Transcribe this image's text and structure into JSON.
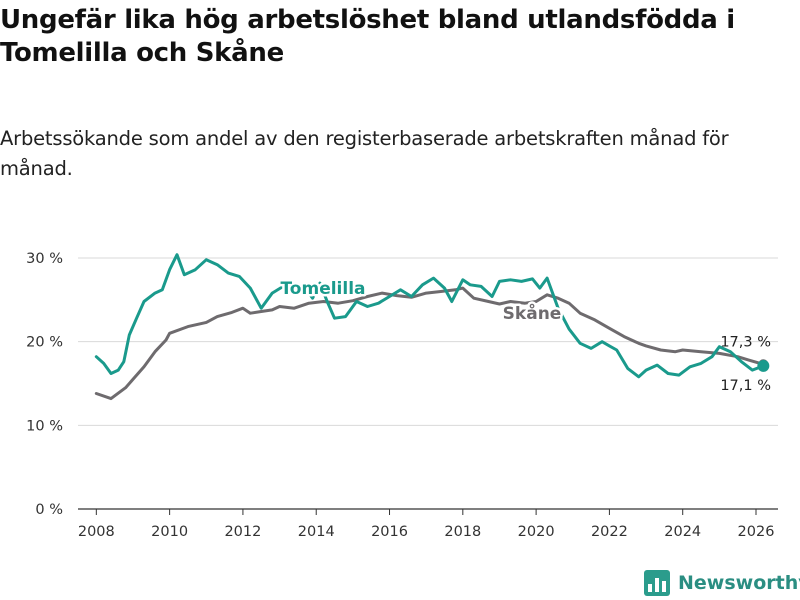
{
  "title": "Ungefär lika hög arbetslöshet bland utlandsfödda i Tomelilla och Skåne",
  "subtitle": "Arbetssökande som andel av den registerbaserade arbetskraften månad för månad.",
  "brand": {
    "name": "Newsworthy",
    "icon": "bar-chart-logo-icon",
    "color": "#2b9c8c"
  },
  "chart_data": {
    "type": "line",
    "x_unit": "year",
    "xlim": [
      2007.5,
      2026.6
    ],
    "ylim": [
      0,
      31
    ],
    "y_ticks": [
      0,
      10,
      20,
      30
    ],
    "y_tick_labels": [
      "0 %",
      "10 %",
      "20 %",
      "30 %"
    ],
    "x_ticks": [
      2008,
      2010,
      2012,
      2014,
      2016,
      2018,
      2020,
      2022,
      2024,
      2026
    ],
    "x_tick_labels": [
      "2008",
      "2010",
      "2012",
      "2014",
      "2016",
      "2018",
      "2020",
      "2022",
      "2024",
      "2026"
    ],
    "grid": "horizontal",
    "series": [
      {
        "name": "Skåne",
        "color": "#6e6b6e",
        "label_position": "mid-line",
        "end_label": "17,3 %",
        "points": [
          [
            2008.0,
            13.8
          ],
          [
            2008.4,
            13.2
          ],
          [
            2008.8,
            14.5
          ],
          [
            2009.0,
            15.5
          ],
          [
            2009.3,
            17.0
          ],
          [
            2009.6,
            18.8
          ],
          [
            2009.9,
            20.2
          ],
          [
            2010.0,
            21.0
          ],
          [
            2010.5,
            21.8
          ],
          [
            2011.0,
            22.3
          ],
          [
            2011.3,
            23.0
          ],
          [
            2011.7,
            23.5
          ],
          [
            2012.0,
            24.0
          ],
          [
            2012.2,
            23.4
          ],
          [
            2012.5,
            23.6
          ],
          [
            2012.8,
            23.8
          ],
          [
            2013.0,
            24.2
          ],
          [
            2013.4,
            24.0
          ],
          [
            2013.8,
            24.6
          ],
          [
            2014.2,
            24.8
          ],
          [
            2014.6,
            24.6
          ],
          [
            2015.0,
            24.9
          ],
          [
            2015.4,
            25.4
          ],
          [
            2015.8,
            25.8
          ],
          [
            2016.2,
            25.5
          ],
          [
            2016.6,
            25.3
          ],
          [
            2017.0,
            25.8
          ],
          [
            2017.4,
            26.0
          ],
          [
            2017.8,
            26.2
          ],
          [
            2018.0,
            26.4
          ],
          [
            2018.3,
            25.2
          ],
          [
            2018.7,
            24.8
          ],
          [
            2019.0,
            24.5
          ],
          [
            2019.3,
            24.8
          ],
          [
            2019.7,
            24.6
          ],
          [
            2020.0,
            24.8
          ],
          [
            2020.3,
            25.6
          ],
          [
            2020.6,
            25.2
          ],
          [
            2020.9,
            24.6
          ],
          [
            2021.2,
            23.4
          ],
          [
            2021.6,
            22.6
          ],
          [
            2022.0,
            21.6
          ],
          [
            2022.4,
            20.6
          ],
          [
            2022.8,
            19.8
          ],
          [
            2023.0,
            19.5
          ],
          [
            2023.4,
            19.0
          ],
          [
            2023.8,
            18.8
          ],
          [
            2024.0,
            19.0
          ],
          [
            2024.5,
            18.8
          ],
          [
            2025.0,
            18.6
          ],
          [
            2025.5,
            18.2
          ],
          [
            2025.8,
            17.8
          ],
          [
            2026.2,
            17.3
          ]
        ]
      },
      {
        "name": "Tomelilla",
        "color": "#1a9a8c",
        "label_position": "above-line",
        "end_label": "17,1 %",
        "points": [
          [
            2008.0,
            18.2
          ],
          [
            2008.2,
            17.4
          ],
          [
            2008.4,
            16.2
          ],
          [
            2008.6,
            16.6
          ],
          [
            2008.75,
            17.6
          ],
          [
            2008.9,
            20.8
          ],
          [
            2009.1,
            22.8
          ],
          [
            2009.3,
            24.8
          ],
          [
            2009.6,
            25.8
          ],
          [
            2009.8,
            26.2
          ],
          [
            2010.0,
            28.6
          ],
          [
            2010.2,
            30.4
          ],
          [
            2010.4,
            28.0
          ],
          [
            2010.7,
            28.6
          ],
          [
            2011.0,
            29.8
          ],
          [
            2011.3,
            29.2
          ],
          [
            2011.6,
            28.2
          ],
          [
            2011.9,
            27.8
          ],
          [
            2012.2,
            26.4
          ],
          [
            2012.5,
            24.0
          ],
          [
            2012.8,
            25.8
          ],
          [
            2013.1,
            26.6
          ],
          [
            2013.4,
            25.8
          ],
          [
            2013.7,
            26.4
          ],
          [
            2013.9,
            25.2
          ],
          [
            2014.1,
            27.0
          ],
          [
            2014.3,
            24.8
          ],
          [
            2014.5,
            22.8
          ],
          [
            2014.8,
            23.0
          ],
          [
            2015.1,
            24.8
          ],
          [
            2015.4,
            24.2
          ],
          [
            2015.7,
            24.6
          ],
          [
            2016.0,
            25.4
          ],
          [
            2016.3,
            26.2
          ],
          [
            2016.6,
            25.4
          ],
          [
            2016.9,
            26.8
          ],
          [
            2017.2,
            27.6
          ],
          [
            2017.5,
            26.4
          ],
          [
            2017.7,
            24.8
          ],
          [
            2018.0,
            27.4
          ],
          [
            2018.2,
            26.8
          ],
          [
            2018.5,
            26.6
          ],
          [
            2018.8,
            25.4
          ],
          [
            2019.0,
            27.2
          ],
          [
            2019.3,
            27.4
          ],
          [
            2019.6,
            27.2
          ],
          [
            2019.9,
            27.5
          ],
          [
            2020.1,
            26.4
          ],
          [
            2020.3,
            27.6
          ],
          [
            2020.6,
            24.0
          ],
          [
            2020.9,
            21.5
          ],
          [
            2021.2,
            19.8
          ],
          [
            2021.5,
            19.2
          ],
          [
            2021.8,
            20.0
          ],
          [
            2022.0,
            19.5
          ],
          [
            2022.2,
            19.0
          ],
          [
            2022.5,
            16.8
          ],
          [
            2022.8,
            15.8
          ],
          [
            2023.0,
            16.6
          ],
          [
            2023.3,
            17.2
          ],
          [
            2023.6,
            16.2
          ],
          [
            2023.9,
            16.0
          ],
          [
            2024.2,
            17.0
          ],
          [
            2024.5,
            17.4
          ],
          [
            2024.8,
            18.2
          ],
          [
            2025.0,
            19.4
          ],
          [
            2025.3,
            18.8
          ],
          [
            2025.6,
            17.6
          ],
          [
            2025.9,
            16.6
          ],
          [
            2026.2,
            17.1
          ]
        ]
      }
    ]
  }
}
